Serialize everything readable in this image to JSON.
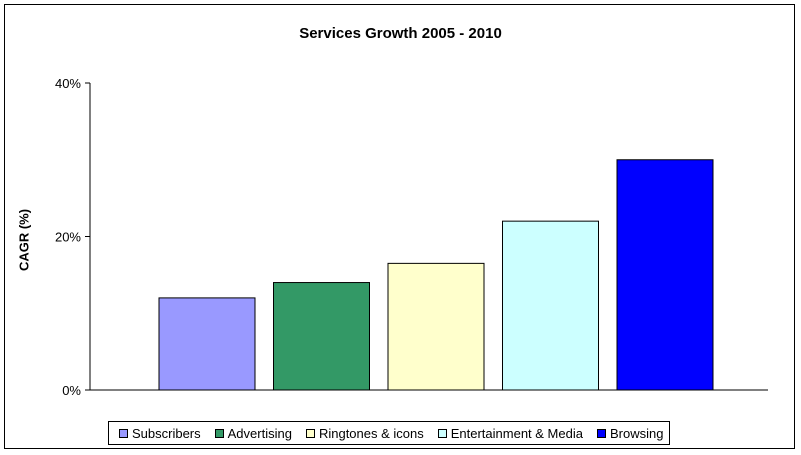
{
  "chart_data": {
    "type": "bar",
    "title": "Services Growth 2005 - 2010",
    "xlabel": "",
    "ylabel": "CAGR (%)",
    "ylim": [
      0,
      40
    ],
    "yticks": [
      0,
      20,
      40
    ],
    "ytick_labels": [
      "0%",
      "20%",
      "40%"
    ],
    "grid": false,
    "legend_position": "bottom",
    "categories": [
      "Subscribers",
      "Advertising",
      "Ringtones & icons",
      "Entertainment & Media",
      "Browsing"
    ],
    "values": [
      12,
      14,
      16.5,
      22,
      30
    ],
    "colors": [
      "#9999ff",
      "#339966",
      "#ffffcc",
      "#ccffff",
      "#0000ff"
    ]
  }
}
